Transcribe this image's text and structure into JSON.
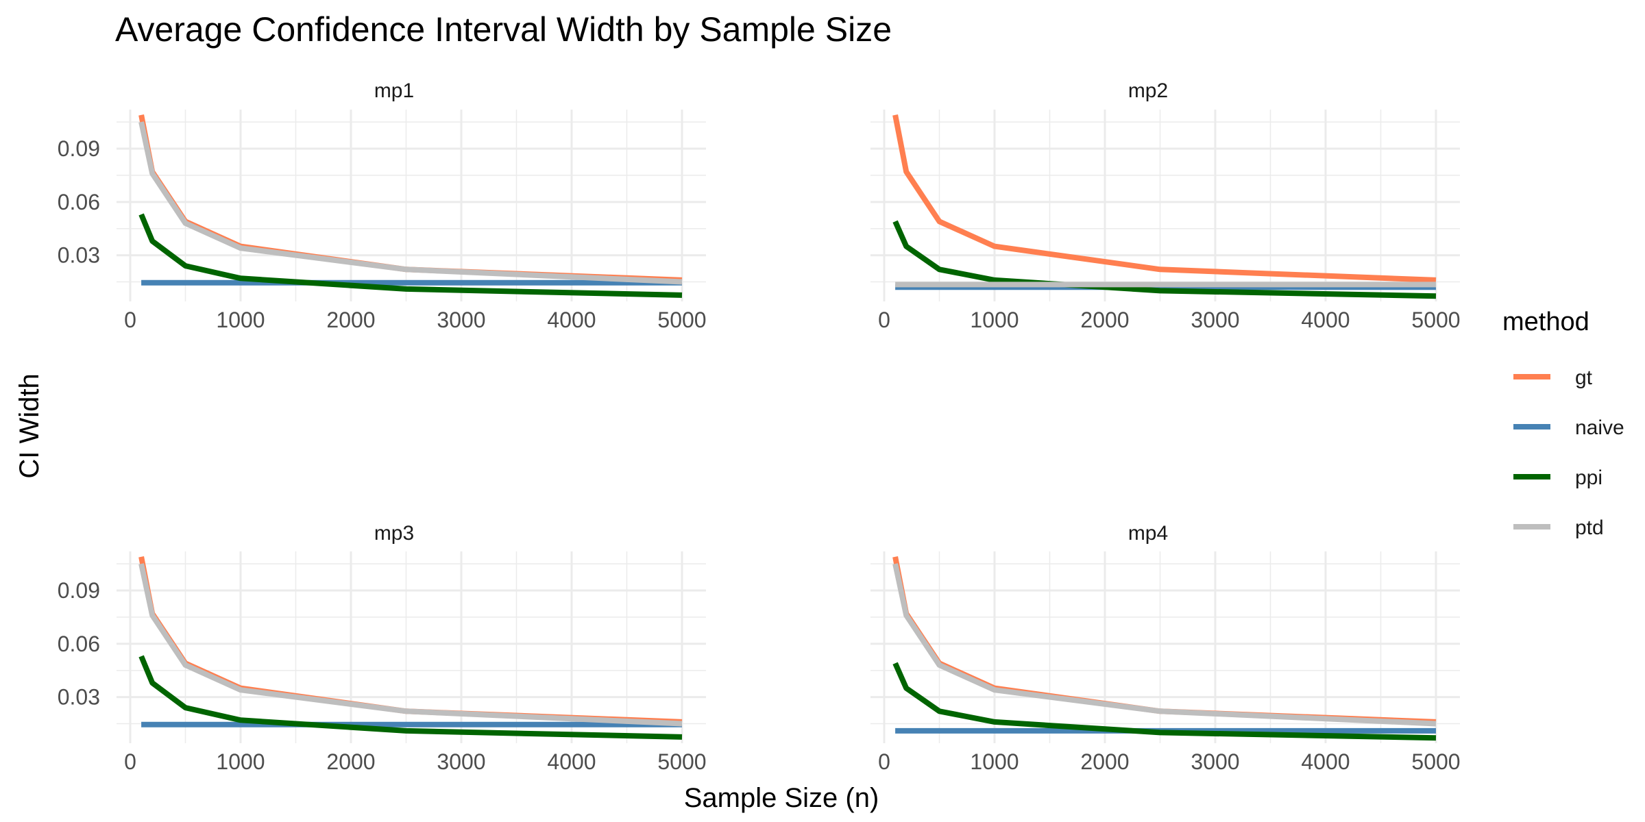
{
  "chart_data": {
    "type": "line",
    "title": "Average Confidence Interval Width by Sample Size",
    "xlabel": "Sample Size (n)",
    "ylabel": "CI Width",
    "xlim": [
      0,
      5000
    ],
    "ylim": [
      0.004,
      0.112
    ],
    "x_ticks": [
      0,
      1000,
      2000,
      3000,
      4000,
      5000
    ],
    "y_ticks": [
      0.03,
      0.06,
      0.09
    ],
    "y_tick_labels": [
      "0.03",
      "0.06",
      "0.09"
    ],
    "x_tick_labels": [
      "0",
      "1000",
      "2000",
      "3000",
      "4000",
      "5000"
    ],
    "grid": true,
    "legend": {
      "title": "method",
      "position": "right",
      "entries": [
        {
          "name": "gt",
          "color": "#FF7F50"
        },
        {
          "name": "naive",
          "color": "#4682B4"
        },
        {
          "name": "ppi",
          "color": "#006400"
        },
        {
          "name": "ptd",
          "color": "#BEBEBE"
        }
      ]
    },
    "panels": [
      {
        "label": "mp1",
        "x": [
          100,
          200,
          500,
          1000,
          2500,
          5000
        ],
        "series": [
          {
            "name": "gt",
            "color": "#FF7F50",
            "values": [
              0.109,
              0.077,
              0.049,
              0.035,
              0.022,
              0.016
            ]
          },
          {
            "name": "naive",
            "color": "#4682B4",
            "values": [
              0.0145,
              0.0145,
              0.0145,
              0.0145,
              0.0145,
              0.0145
            ]
          },
          {
            "name": "ppi",
            "color": "#006400",
            "values": [
              0.053,
              0.038,
              0.024,
              0.017,
              0.011,
              0.0075
            ]
          },
          {
            "name": "ptd",
            "color": "#BEBEBE",
            "values": [
              0.105,
              0.076,
              0.048,
              0.034,
              0.022,
              0.015
            ]
          }
        ]
      },
      {
        "label": "mp2",
        "x": [
          100,
          200,
          500,
          1000,
          2500,
          5000
        ],
        "series": [
          {
            "name": "gt",
            "color": "#FF7F50",
            "values": [
              0.109,
              0.077,
              0.049,
              0.035,
              0.022,
              0.016
            ]
          },
          {
            "name": "naive",
            "color": "#4682B4",
            "values": [
              0.012,
              0.012,
              0.012,
              0.012,
              0.012,
              0.012
            ]
          },
          {
            "name": "ppi",
            "color": "#006400",
            "values": [
              0.049,
              0.035,
              0.022,
              0.016,
              0.01,
              0.007
            ]
          },
          {
            "name": "ptd",
            "color": "#BEBEBE",
            "values": [
              0.0135,
              0.0135,
              0.0135,
              0.0135,
              0.0135,
              0.0135
            ]
          }
        ]
      },
      {
        "label": "mp3",
        "x": [
          100,
          200,
          500,
          1000,
          2500,
          5000
        ],
        "series": [
          {
            "name": "gt",
            "color": "#FF7F50",
            "values": [
              0.109,
              0.077,
              0.049,
              0.035,
              0.022,
              0.016
            ]
          },
          {
            "name": "naive",
            "color": "#4682B4",
            "values": [
              0.0145,
              0.0145,
              0.0145,
              0.0145,
              0.0145,
              0.0145
            ]
          },
          {
            "name": "ppi",
            "color": "#006400",
            "values": [
              0.053,
              0.038,
              0.024,
              0.017,
              0.011,
              0.0075
            ]
          },
          {
            "name": "ptd",
            "color": "#BEBEBE",
            "values": [
              0.105,
              0.076,
              0.048,
              0.034,
              0.022,
              0.015
            ]
          }
        ]
      },
      {
        "label": "mp4",
        "x": [
          100,
          200,
          500,
          1000,
          2500,
          5000
        ],
        "series": [
          {
            "name": "gt",
            "color": "#FF7F50",
            "values": [
              0.109,
              0.077,
              0.049,
              0.035,
              0.022,
              0.016
            ]
          },
          {
            "name": "naive",
            "color": "#4682B4",
            "values": [
              0.011,
              0.011,
              0.011,
              0.011,
              0.011,
              0.011
            ]
          },
          {
            "name": "ppi",
            "color": "#006400",
            "values": [
              0.049,
              0.035,
              0.022,
              0.016,
              0.01,
              0.007
            ]
          },
          {
            "name": "ptd",
            "color": "#BEBEBE",
            "values": [
              0.105,
              0.076,
              0.048,
              0.034,
              0.022,
              0.015
            ]
          }
        ]
      }
    ]
  }
}
